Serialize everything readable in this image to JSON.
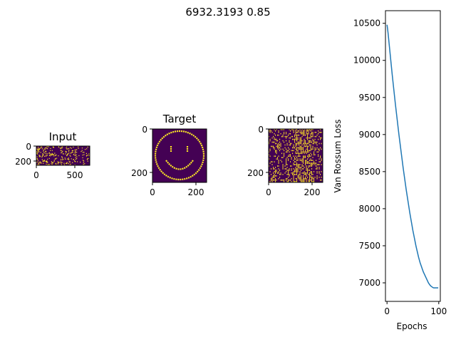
{
  "figure": {
    "suptitle": "6932.3193 0.85"
  },
  "panels": {
    "input": {
      "title": "Input",
      "x_ticks": [
        "0",
        "500"
      ],
      "y_ticks": [
        "0",
        "200"
      ],
      "colormap": "viridis",
      "content": "random sparse spike raster"
    },
    "target": {
      "title": "Target",
      "x_ticks": [
        "0",
        "200"
      ],
      "y_ticks": [
        "0",
        "200"
      ],
      "colormap": "viridis",
      "content": "smiley face"
    },
    "output": {
      "title": "Output",
      "x_ticks": [
        "0",
        "200"
      ],
      "y_ticks": [
        "0",
        "200"
      ],
      "colormap": "viridis",
      "content": "dense spike raster"
    }
  },
  "colors": {
    "background": "#440154",
    "foreground": "#fde725",
    "line": "#1f77b4"
  },
  "chart_data": {
    "type": "line",
    "title": "",
    "xlabel": "Epochs",
    "ylabel": "Van Rossum Loss",
    "xlim": [
      -3,
      103
    ],
    "ylim": [
      6750,
      10670
    ],
    "x_ticks": [
      0,
      100
    ],
    "y_ticks": [
      7000,
      7500,
      8000,
      8500,
      9000,
      9500,
      10000,
      10500
    ],
    "grid": false,
    "series": [
      {
        "x": [
          0,
          1,
          2,
          3,
          4,
          5,
          6,
          7,
          8,
          9,
          10,
          11,
          12,
          13,
          14,
          15,
          16,
          17,
          18,
          19,
          20,
          21,
          22,
          23,
          24,
          25,
          26,
          27,
          28,
          29,
          30,
          31,
          32,
          33,
          34,
          35,
          36,
          37,
          38,
          39,
          40,
          41,
          42,
          43,
          44,
          45,
          46,
          47,
          48,
          49,
          50,
          51,
          52,
          53,
          54,
          55,
          56,
          57,
          58,
          59,
          60,
          61,
          62,
          63,
          64,
          65,
          66,
          67,
          68,
          69,
          70,
          71,
          72,
          73,
          74,
          75,
          76,
          77,
          78,
          79,
          80,
          81,
          82,
          83,
          84,
          85,
          86,
          87,
          88,
          89,
          90,
          91,
          92,
          93,
          94,
          95,
          96,
          97,
          98,
          99
        ],
        "values": [
          10480,
          10430,
          10370,
          10300,
          10230,
          10160,
          10090,
          10020,
          9950,
          9880,
          9810,
          9745,
          9680,
          9615,
          9550,
          9485,
          9420,
          9360,
          9300,
          9240,
          9180,
          9120,
          9060,
          9000,
          8945,
          8890,
          8835,
          8780,
          8725,
          8670,
          8615,
          8560,
          8510,
          8460,
          8410,
          8360,
          8310,
          8260,
          8215,
          8170,
          8125,
          8080,
          8035,
          7990,
          7945,
          7905,
          7865,
          7825,
          7785,
          7745,
          7705,
          7670,
          7635,
          7600,
          7565,
          7530,
          7495,
          7465,
          7435,
          7405,
          7375,
          7345,
          7320,
          7295,
          7270,
          7250,
          7230,
          7210,
          7190,
          7170,
          7150,
          7135,
          7120,
          7105,
          7090,
          7075,
          7060,
          7045,
          7030,
          7015,
          7000,
          6990,
          6980,
          6970,
          6962,
          6955,
          6950,
          6945,
          6940,
          6936,
          6932.3,
          6932.3,
          6932.3,
          6932.3,
          6932.3,
          6932.3,
          6932.3,
          6932.3,
          6932.3,
          6932.3
        ]
      }
    ]
  }
}
